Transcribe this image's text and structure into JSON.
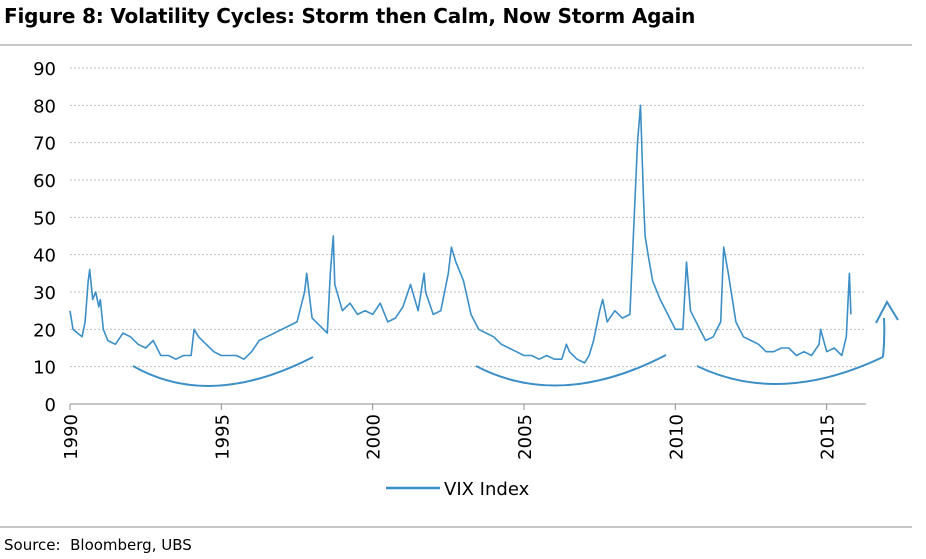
{
  "title": "Figure 8: Volatility Cycles: Storm then Calm, Now Storm Again",
  "source": "Source:  Bloomberg, UBS",
  "colors": {
    "series": "#3c8fc6",
    "grid": "#bfbfbf",
    "rule": "#c8c8c8"
  },
  "chart_data": {
    "type": "line",
    "title": "Figure 8: Volatility Cycles: Storm then Calm, Now Storm Again",
    "xlabel": "",
    "ylabel": "",
    "xlim": [
      1990,
      2016.3
    ],
    "ylim": [
      0,
      90
    ],
    "y_ticks": [
      0,
      10,
      20,
      30,
      40,
      50,
      60,
      70,
      80,
      90
    ],
    "x_ticks": [
      "1990",
      "1995",
      "2000",
      "2005",
      "2010",
      "2015"
    ],
    "grid": "horizontal dashed",
    "legend": "bottom-center",
    "series": [
      {
        "name": "VIX Index",
        "x": [
          1990.0,
          1990.1,
          1990.25,
          1990.4,
          1990.5,
          1990.6,
          1990.65,
          1990.75,
          1990.85,
          1990.95,
          1991.0,
          1991.1,
          1991.25,
          1991.5,
          1991.75,
          1992.0,
          1992.25,
          1992.5,
          1992.75,
          1993.0,
          1993.25,
          1993.5,
          1993.75,
          1994.0,
          1994.1,
          1994.25,
          1994.5,
          1994.75,
          1995.0,
          1995.25,
          1995.5,
          1995.75,
          1996.0,
          1996.25,
          1996.5,
          1996.75,
          1997.0,
          1997.25,
          1997.5,
          1997.75,
          1997.82,
          1998.0,
          1998.25,
          1998.5,
          1998.6,
          1998.7,
          1998.75,
          1999.0,
          1999.25,
          1999.5,
          1999.75,
          2000.0,
          2000.25,
          2000.5,
          2000.75,
          2001.0,
          2001.25,
          2001.5,
          2001.7,
          2001.75,
          2002.0,
          2002.25,
          2002.5,
          2002.6,
          2002.75,
          2003.0,
          2003.25,
          2003.5,
          2003.75,
          2004.0,
          2004.25,
          2004.5,
          2004.75,
          2005.0,
          2005.25,
          2005.5,
          2005.75,
          2006.0,
          2006.25,
          2006.4,
          2006.5,
          2006.75,
          2007.0,
          2007.15,
          2007.3,
          2007.5,
          2007.6,
          2007.75,
          2008.0,
          2008.25,
          2008.5,
          2008.75,
          2008.85,
          2008.95,
          2009.0,
          2009.1,
          2009.25,
          2009.5,
          2009.75,
          2010.0,
          2010.25,
          2010.37,
          2010.5,
          2010.75,
          2011.0,
          2011.25,
          2011.5,
          2011.6,
          2011.75,
          2012.0,
          2012.25,
          2012.5,
          2012.75,
          2013.0,
          2013.25,
          2013.5,
          2013.75,
          2014.0,
          2014.25,
          2014.5,
          2014.75,
          2014.8,
          2015.0,
          2015.25,
          2015.5,
          2015.65,
          2015.75,
          2015.8
        ],
        "y": [
          25,
          20,
          19,
          18,
          22,
          33,
          36,
          28,
          30,
          26,
          28,
          20,
          17,
          16,
          19,
          18,
          16,
          15,
          17,
          13,
          13,
          12,
          13,
          13,
          20,
          18,
          16,
          14,
          13,
          13,
          13,
          12,
          14,
          17,
          18,
          19,
          20,
          21,
          22,
          30,
          35,
          23,
          21,
          19,
          35,
          45,
          32,
          25,
          27,
          24,
          25,
          24,
          27,
          22,
          23,
          26,
          32,
          25,
          35,
          30,
          24,
          25,
          35,
          42,
          38,
          33,
          24,
          20,
          19,
          18,
          16,
          15,
          14,
          13,
          13,
          12,
          13,
          12,
          12,
          16,
          14,
          12,
          11,
          13,
          17,
          25,
          28,
          22,
          25,
          23,
          24,
          70,
          80,
          55,
          45,
          40,
          33,
          28,
          24,
          20,
          20,
          38,
          25,
          21,
          17,
          18,
          22,
          42,
          35,
          22,
          18,
          17,
          16,
          14,
          14,
          15,
          15,
          13,
          14,
          13,
          16,
          20,
          14,
          15,
          13,
          18,
          35,
          24
        ]
      }
    ]
  }
}
